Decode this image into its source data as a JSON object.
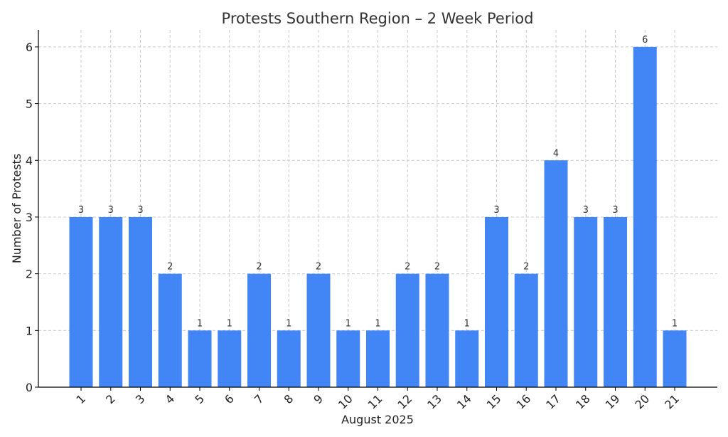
{
  "chart_data": {
    "type": "bar",
    "title": "Protests Southern Region – 2 Week Period",
    "xlabel": "August 2025",
    "ylabel": "Number of Protests",
    "categories": [
      "1",
      "2",
      "3",
      "4",
      "5",
      "6",
      "7",
      "8",
      "9",
      "10",
      "11",
      "12",
      "13",
      "14",
      "15",
      "16",
      "17",
      "18",
      "19",
      "20",
      "21"
    ],
    "values": [
      3,
      3,
      3,
      2,
      1,
      1,
      2,
      1,
      2,
      1,
      1,
      2,
      2,
      1,
      3,
      2,
      4,
      3,
      3,
      6,
      1
    ],
    "ylim": [
      0,
      6.3
    ],
    "yticks": [
      0,
      1,
      2,
      3,
      4,
      5,
      6
    ],
    "grid": true,
    "bar_color": "#4285f4",
    "data_labels": true
  }
}
